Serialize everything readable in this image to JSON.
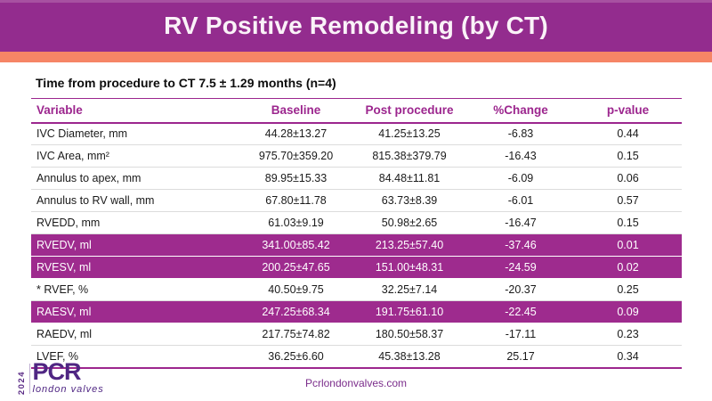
{
  "slide": {
    "title": "RV Positive Remodeling (by CT)",
    "subtitle": "Time from procedure to CT 7.5 ± 1.29 months (n=4)"
  },
  "table": {
    "columns": [
      "Variable",
      "Baseline",
      "Post procedure",
      "%Change",
      "p-value"
    ],
    "rows": [
      {
        "variable": "IVC Diameter, mm",
        "baseline": "44.28±13.27",
        "post": "41.25±13.25",
        "change": "-6.83",
        "p": "0.44",
        "highlighted": false
      },
      {
        "variable": "IVC Area, mm²",
        "baseline": "975.70±359.20",
        "post": "815.38±379.79",
        "change": "-16.43",
        "p": "0.15",
        "highlighted": false
      },
      {
        "variable": "Annulus to apex, mm",
        "baseline": "89.95±15.33",
        "post": "84.48±11.81",
        "change": "-6.09",
        "p": "0.06",
        "highlighted": false
      },
      {
        "variable": "Annulus to RV wall, mm",
        "baseline": "67.80±11.78",
        "post": "63.73±8.39",
        "change": "-6.01",
        "p": "0.57",
        "highlighted": false
      },
      {
        "variable": "RVEDD, mm",
        "baseline": "61.03±9.19",
        "post": "50.98±2.65",
        "change": "-16.47",
        "p": "0.15",
        "highlighted": false
      },
      {
        "variable": "RVEDV, ml",
        "baseline": "341.00±85.42",
        "post": "213.25±57.40",
        "change": "-37.46",
        "p": "0.01",
        "highlighted": true
      },
      {
        "variable": "RVESV, ml",
        "baseline": "200.25±47.65",
        "post": "151.00±48.31",
        "change": "-24.59",
        "p": "0.02",
        "highlighted": true
      },
      {
        "variable": "* RVEF, %",
        "baseline": "40.50±9.75",
        "post": "32.25±7.14",
        "change": "-20.37",
        "p": "0.25",
        "highlighted": false
      },
      {
        "variable": "RAESV, ml",
        "baseline": "247.25±68.34",
        "post": "191.75±61.10",
        "change": "-22.45",
        "p": "0.09",
        "highlighted": true
      },
      {
        "variable": "RAEDV, ml",
        "baseline": "217.75±74.82",
        "post": "180.50±58.37",
        "change": "-17.11",
        "p": "0.23",
        "highlighted": false
      },
      {
        "variable": "LVEF, %",
        "baseline": "36.25±6.60",
        "post": "45.38±13.28",
        "change": "25.17",
        "p": "0.34",
        "highlighted": false
      }
    ]
  },
  "footer": {
    "logo_year": "2024",
    "logo_main": "PCR",
    "logo_sub": "london valves",
    "website": "Pcrlondonvalves.com"
  },
  "colors": {
    "banner": "#932C8E",
    "accent_stripe": "#F68566",
    "table_accent": "#9C268E",
    "highlight_row": "#9E2B8E",
    "logo_purple": "#4F2683",
    "website_text": "#7B2D8B"
  }
}
